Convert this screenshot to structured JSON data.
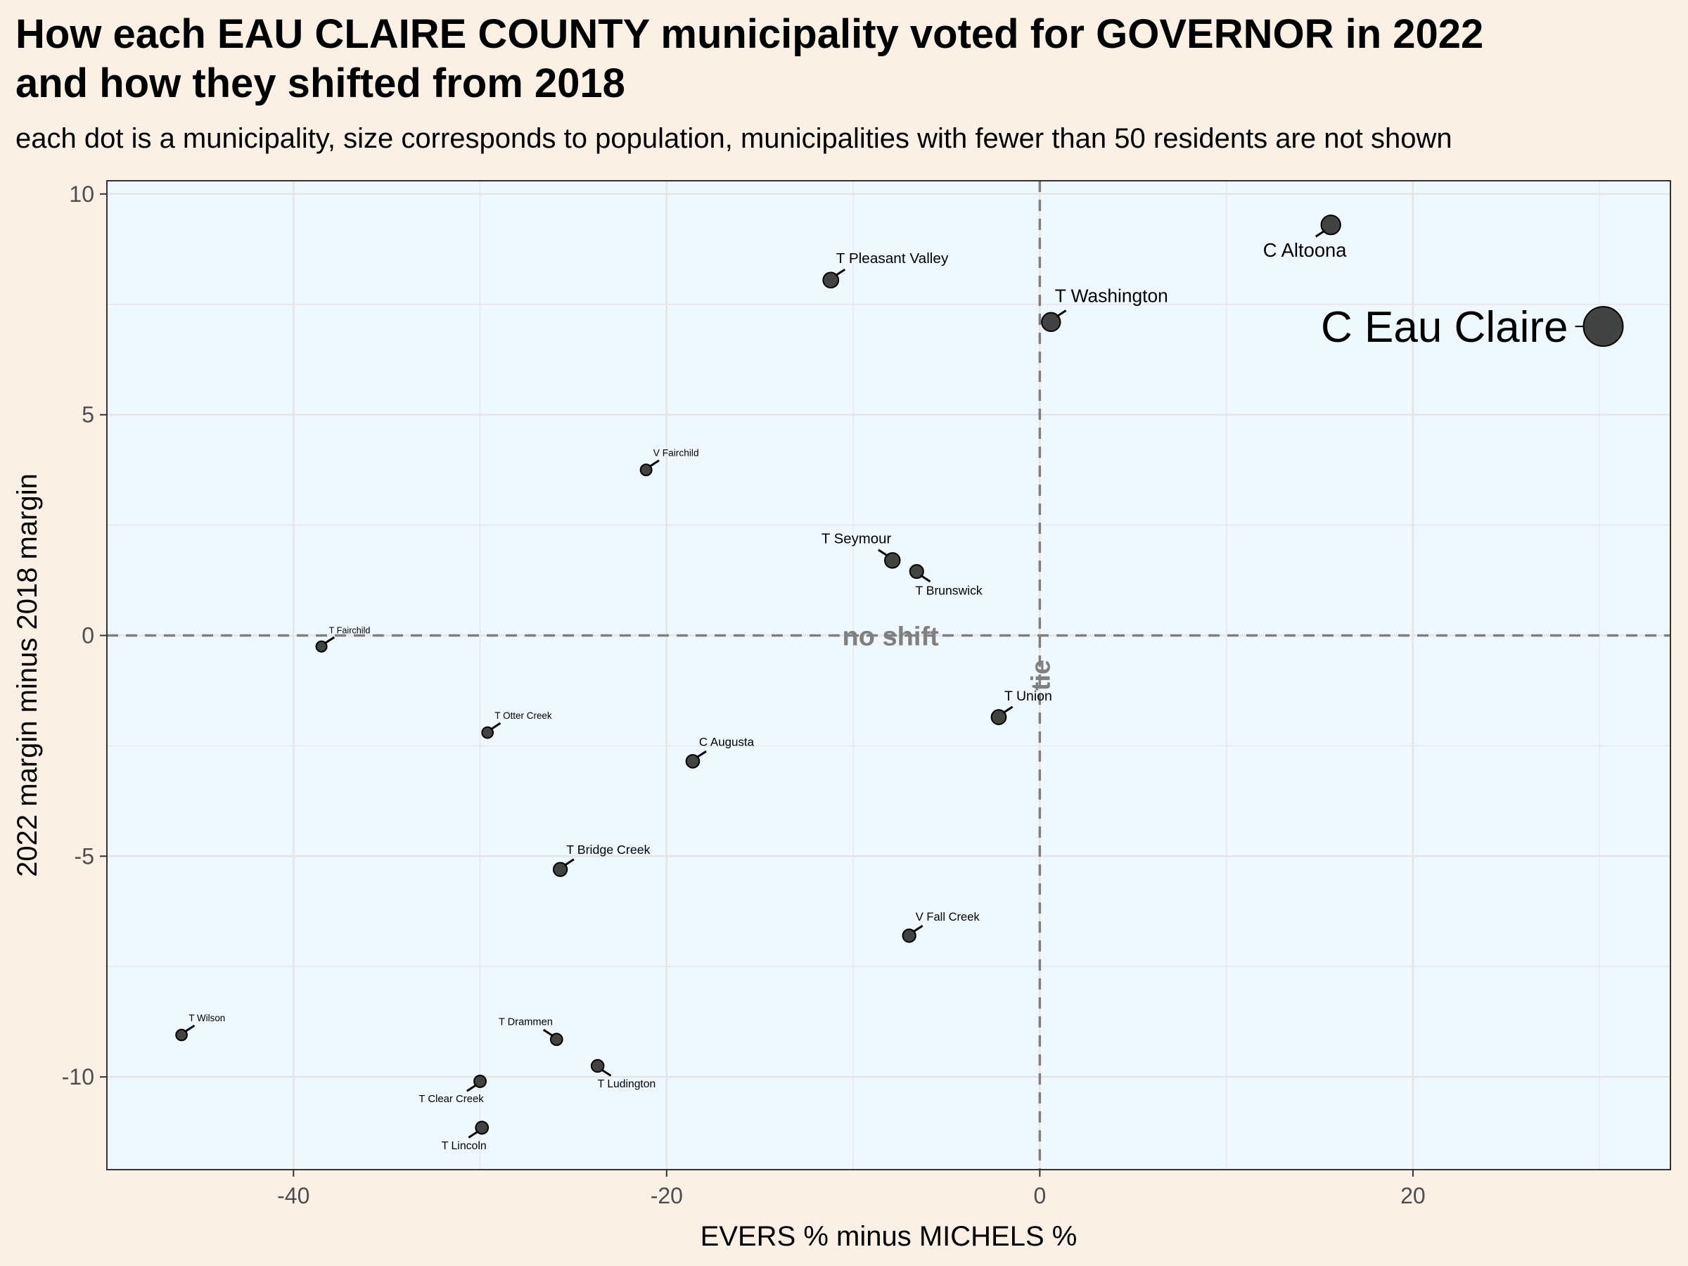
{
  "chart_data": {
    "type": "scatter",
    "title_line1": "How each EAU CLAIRE COUNTY municipality voted for GOVERNOR in 2022",
    "title_line2": "and how they shifted from 2018",
    "subtitle": "each dot is a municipality, size corresponds to population, municipalities with fewer than 50 residents are not shown",
    "xlabel": "EVERS % minus MICHELS %",
    "ylabel": "2022 margin minus 2018 margin",
    "xlim": [
      -50,
      33.8
    ],
    "ylim": [
      -12.1,
      10.3
    ],
    "x_ticks": [
      -40,
      -20,
      0,
      20
    ],
    "y_ticks": [
      10,
      5,
      0,
      -5,
      -10
    ],
    "grid": true,
    "hline": {
      "y": 0,
      "label": "no shift"
    },
    "vline": {
      "x": 0,
      "label": "tie"
    },
    "colors": {
      "panel": "#f0f8ff",
      "page": "#fbf0e6",
      "point": "#333333",
      "reference_line": "#808080",
      "grid": "#e4e4e4"
    },
    "points": [
      {
        "name": "C Eau Claire",
        "x": 30.2,
        "y": 7.0,
        "population": 69000
      },
      {
        "name": "C Altoona",
        "x": 15.6,
        "y": 9.3,
        "population": 8300
      },
      {
        "name": "T Washington",
        "x": 0.6,
        "y": 7.1,
        "population": 7400
      },
      {
        "name": "T Pleasant Valley",
        "x": -11.2,
        "y": 8.05,
        "population": 3400
      },
      {
        "name": "V Fairchild",
        "x": -21.1,
        "y": 3.75,
        "population": 550
      },
      {
        "name": "T Seymour",
        "x": -7.9,
        "y": 1.7,
        "population": 3200
      },
      {
        "name": "T Brunswick",
        "x": -6.6,
        "y": 1.45,
        "population": 1800
      },
      {
        "name": "T Fairchild",
        "x": -38.5,
        "y": -0.25,
        "population": 330
      },
      {
        "name": "T Union",
        "x": -2.2,
        "y": -1.85,
        "population": 2700
      },
      {
        "name": "T Otter Creek",
        "x": -29.6,
        "y": -2.2,
        "population": 490
      },
      {
        "name": "C Augusta",
        "x": -18.6,
        "y": -2.85,
        "population": 1550
      },
      {
        "name": "T Bridge Creek",
        "x": -25.7,
        "y": -5.3,
        "population": 1900
      },
      {
        "name": "V Fall Creek",
        "x": -7.0,
        "y": -6.8,
        "population": 1400
      },
      {
        "name": "T Wilson",
        "x": -46.0,
        "y": -9.05,
        "population": 480
      },
      {
        "name": "T Drammen",
        "x": -25.9,
        "y": -9.15,
        "population": 780
      },
      {
        "name": "T Ludington",
        "x": -23.7,
        "y": -9.75,
        "population": 1100
      },
      {
        "name": "T Clear Creek",
        "x": -30.0,
        "y": -10.1,
        "population": 850
      },
      {
        "name": "T Lincoln",
        "x": -29.9,
        "y": -11.15,
        "population": 1150
      }
    ]
  }
}
